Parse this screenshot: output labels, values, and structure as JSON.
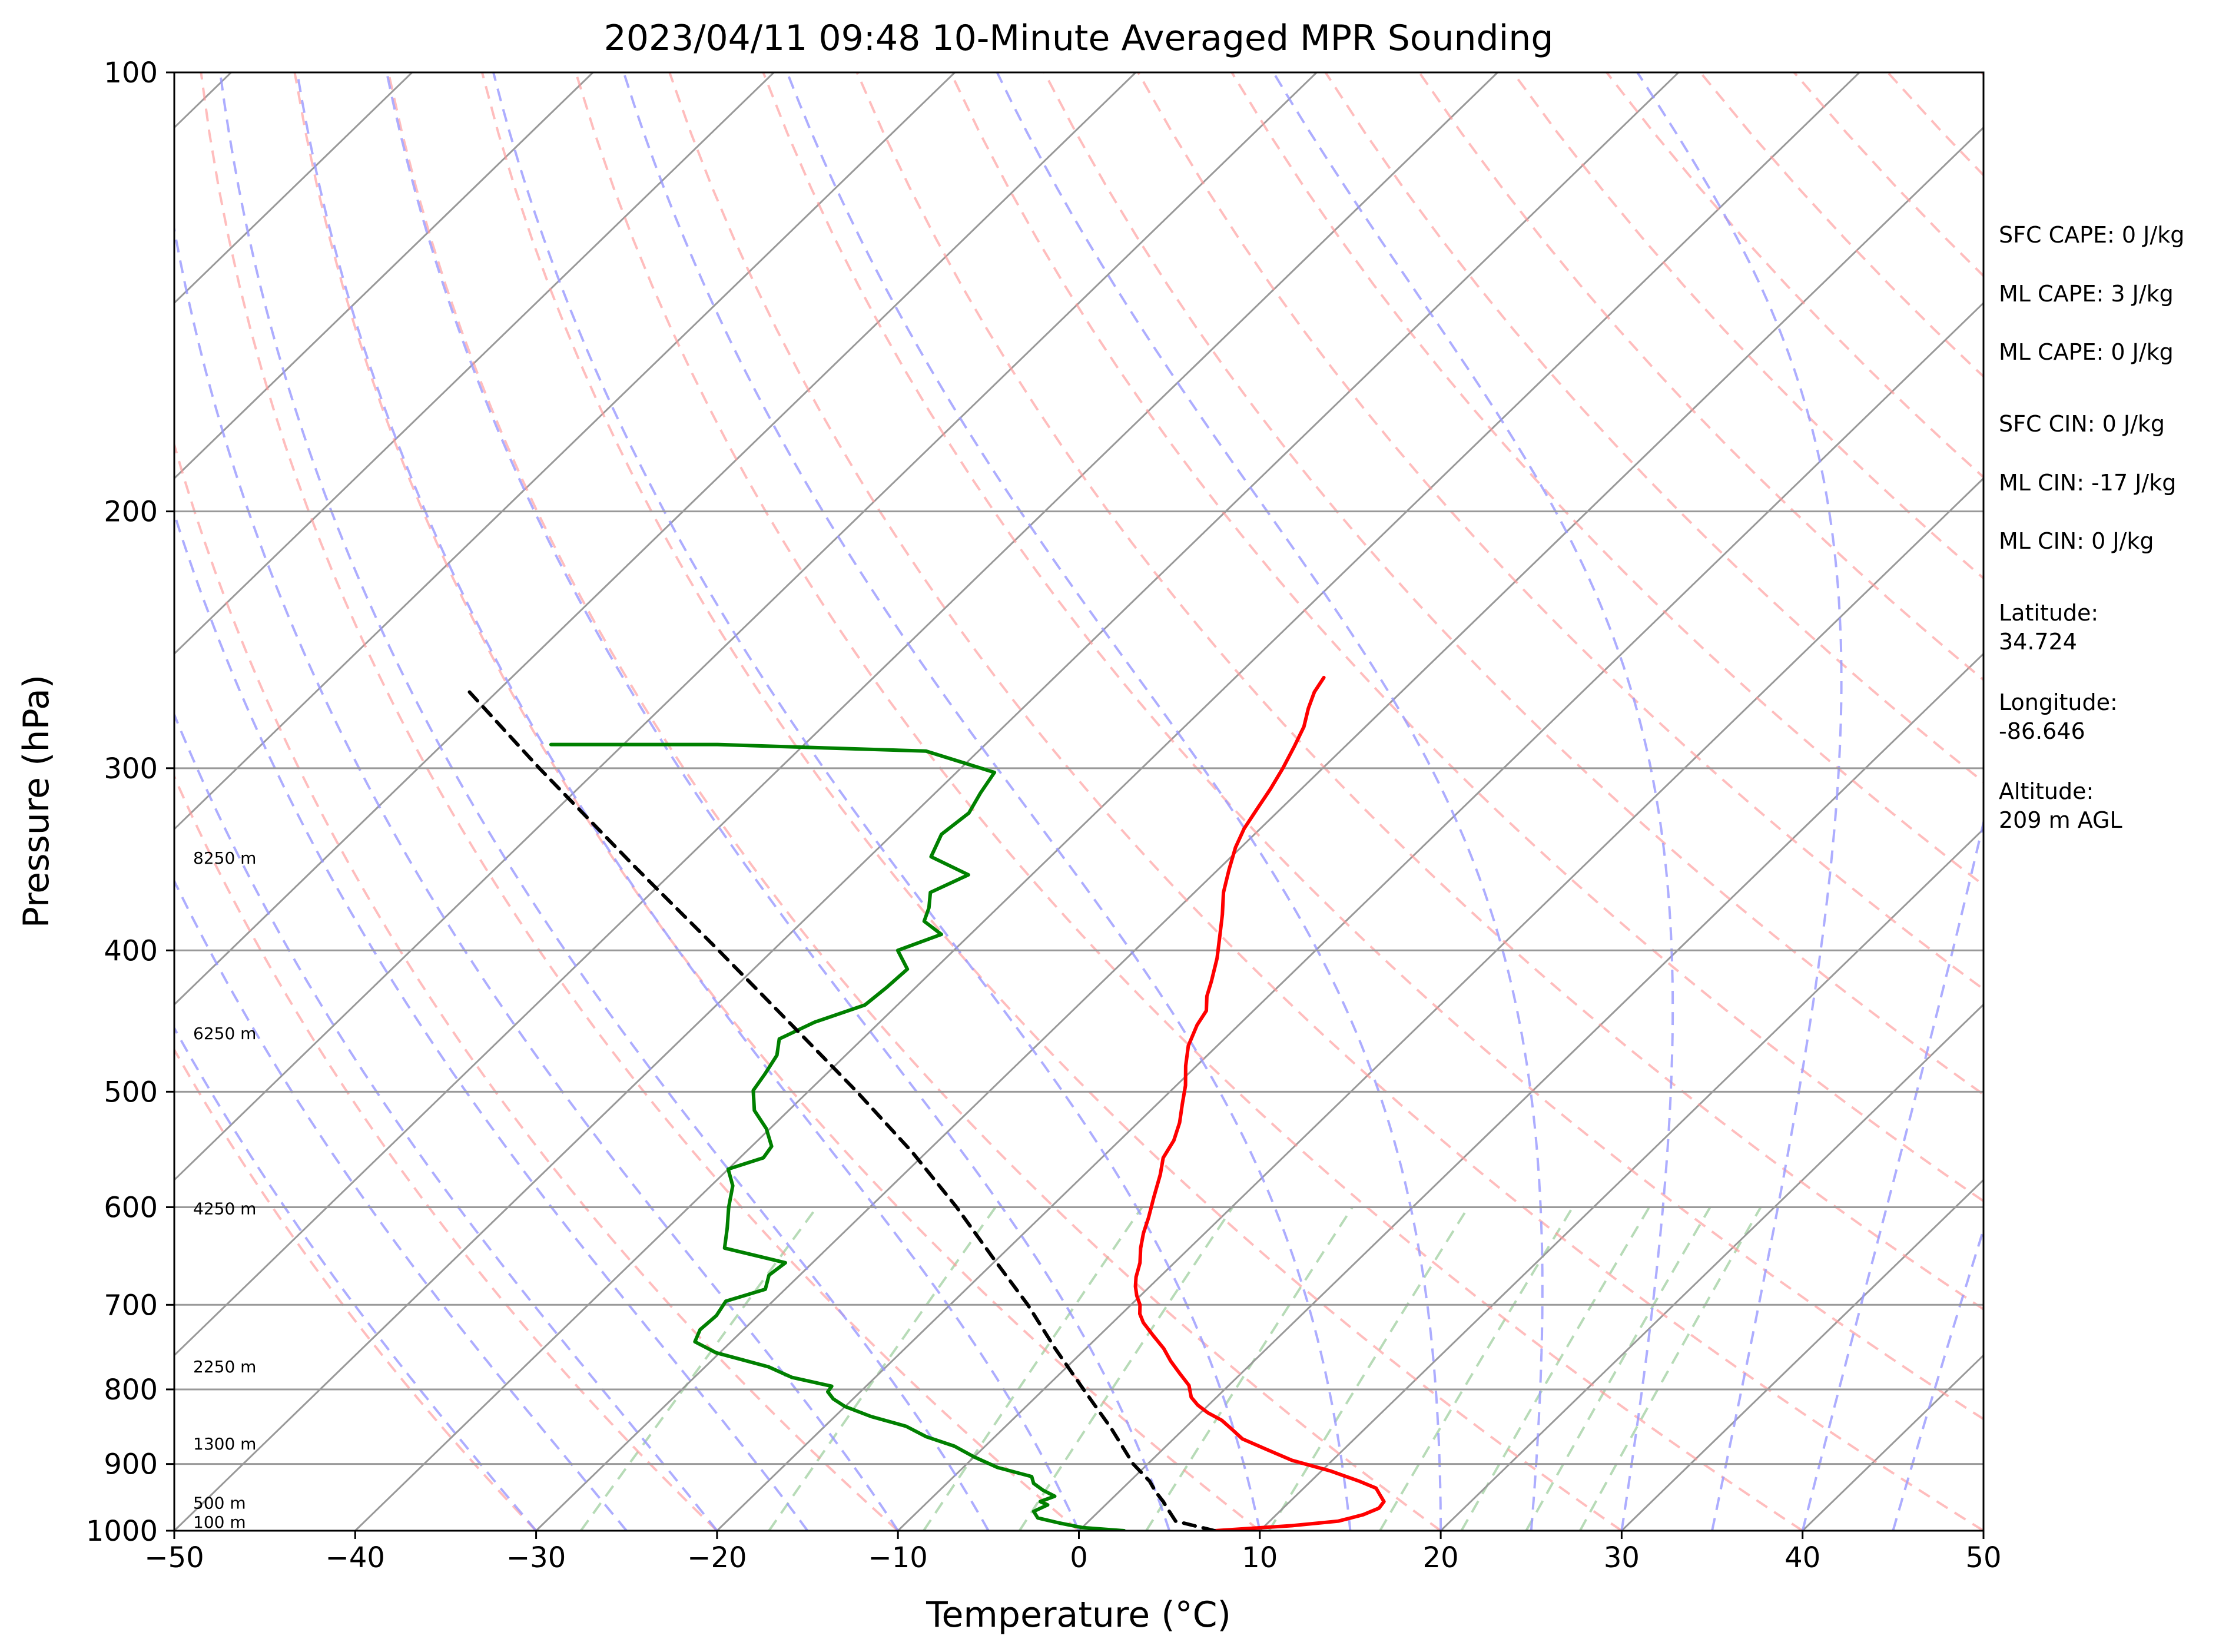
{
  "chart_data": {
    "type": "line",
    "subtype": "skew-t log-p",
    "title": "2023/04/11 09:48 10-Minute Averaged MPR Sounding",
    "xlabel": "Temperature (°C)",
    "ylabel": "Pressure (hPa)",
    "xlim": [
      -50,
      50
    ],
    "ylim": [
      1000,
      100
    ],
    "y_scale": "log",
    "x_ticks": [
      "−50",
      "−40",
      "−30",
      "−20",
      "−10",
      "0",
      "10",
      "20",
      "30",
      "40",
      "50"
    ],
    "y_ticks": [
      "100",
      "200",
      "300",
      "400",
      "500",
      "600",
      "700",
      "800",
      "900",
      "1000"
    ],
    "grid": true,
    "series": [
      {
        "role": "temperature",
        "color": "#ff0000",
        "points": [
          [
            1000,
            7.5
          ],
          [
            992,
            11.5
          ],
          [
            985,
            13.8
          ],
          [
            975,
            14.8
          ],
          [
            965,
            15.3
          ],
          [
            955,
            15.2
          ],
          [
            945,
            14.6
          ],
          [
            935,
            14.0
          ],
          [
            925,
            12.7
          ],
          [
            910,
            10.5
          ],
          [
            895,
            7.8
          ],
          [
            880,
            5.8
          ],
          [
            865,
            3.8
          ],
          [
            850,
            2.5
          ],
          [
            840,
            1.6
          ],
          [
            830,
            0.4
          ],
          [
            820,
            -0.6
          ],
          [
            810,
            -1.4
          ],
          [
            795,
            -2.2
          ],
          [
            780,
            -3.4
          ],
          [
            765,
            -4.6
          ],
          [
            750,
            -5.7
          ],
          [
            735,
            -7.0
          ],
          [
            720,
            -8.3
          ],
          [
            710,
            -9.0
          ],
          [
            700,
            -9.5
          ],
          [
            690,
            -10.2
          ],
          [
            680,
            -10.8
          ],
          [
            670,
            -11.3
          ],
          [
            655,
            -11.9
          ],
          [
            640,
            -12.7
          ],
          [
            625,
            -13.4
          ],
          [
            610,
            -14.0
          ],
          [
            590,
            -14.9
          ],
          [
            570,
            -15.8
          ],
          [
            555,
            -16.6
          ],
          [
            540,
            -17.0
          ],
          [
            525,
            -17.7
          ],
          [
            510,
            -18.6
          ],
          [
            495,
            -19.5
          ],
          [
            480,
            -20.6
          ],
          [
            465,
            -21.6
          ],
          [
            450,
            -22.3
          ],
          [
            440,
            -22.6
          ],
          [
            430,
            -23.4
          ],
          [
            420,
            -24.0
          ],
          [
            405,
            -25.0
          ],
          [
            390,
            -26.2
          ],
          [
            378,
            -27.2
          ],
          [
            365,
            -28.4
          ],
          [
            352,
            -29.4
          ],
          [
            340,
            -30.3
          ],
          [
            330,
            -30.9
          ],
          [
            320,
            -31.3
          ],
          [
            310,
            -31.7
          ],
          [
            300,
            -32.2
          ],
          [
            290,
            -32.8
          ],
          [
            281,
            -33.4
          ],
          [
            273,
            -34.2
          ],
          [
            266,
            -34.8
          ],
          [
            260,
            -35.1
          ]
        ]
      },
      {
        "role": "dewpoint",
        "color": "#008000",
        "points": [
          [
            1000,
            2.5
          ],
          [
            995,
            0.0
          ],
          [
            988,
            -1.5
          ],
          [
            980,
            -3.0
          ],
          [
            970,
            -3.6
          ],
          [
            960,
            -3.2
          ],
          [
            955,
            -3.8
          ],
          [
            947,
            -3.3
          ],
          [
            938,
            -4.3
          ],
          [
            928,
            -5.2
          ],
          [
            918,
            -5.7
          ],
          [
            905,
            -8.1
          ],
          [
            890,
            -10.0
          ],
          [
            875,
            -11.7
          ],
          [
            862,
            -13.8
          ],
          [
            848,
            -15.5
          ],
          [
            835,
            -18.0
          ],
          [
            822,
            -20.0
          ],
          [
            812,
            -21.1
          ],
          [
            803,
            -21.8
          ],
          [
            796,
            -21.9
          ],
          [
            785,
            -24.6
          ],
          [
            772,
            -26.5
          ],
          [
            755,
            -30.2
          ],
          [
            742,
            -32.0
          ],
          [
            728,
            -32.4
          ],
          [
            712,
            -32.3
          ],
          [
            696,
            -32.6
          ],
          [
            683,
            -31.1
          ],
          [
            668,
            -31.7
          ],
          [
            655,
            -31.5
          ],
          [
            640,
            -35.7
          ],
          [
            620,
            -36.7
          ],
          [
            600,
            -37.8
          ],
          [
            580,
            -38.8
          ],
          [
            565,
            -40.0
          ],
          [
            555,
            -38.7
          ],
          [
            545,
            -38.9
          ],
          [
            530,
            -40.2
          ],
          [
            515,
            -41.9
          ],
          [
            499,
            -43.1
          ],
          [
            486,
            -43.4
          ],
          [
            472,
            -43.8
          ],
          [
            460,
            -44.6
          ],
          [
            448,
            -43.6
          ],
          [
            436,
            -41.8
          ],
          [
            424,
            -41.6
          ],
          [
            412,
            -41.5
          ],
          [
            400,
            -43.1
          ],
          [
            390,
            -41.6
          ],
          [
            382,
            -43.3
          ],
          [
            374,
            -43.8
          ],
          [
            365,
            -44.6
          ],
          [
            355,
            -43.5
          ],
          [
            345,
            -46.6
          ],
          [
            333,
            -47.3
          ],
          [
            322,
            -47.0
          ],
          [
            312,
            -47.5
          ],
          [
            302,
            -47.9
          ],
          [
            292,
            -52.9
          ],
          [
            289,
            -64.8
          ],
          [
            289,
            -74.0
          ]
        ]
      },
      {
        "role": "parcel",
        "color": "#000000",
        "style": "dashed",
        "points": [
          [
            1000,
            7.5
          ],
          [
            985,
            4.8
          ],
          [
            970,
            3.9
          ],
          [
            955,
            3.0
          ],
          [
            940,
            2.0
          ],
          [
            925,
            1.1
          ],
          [
            900,
            -0.8
          ],
          [
            850,
            -4.1
          ],
          [
            800,
            -7.8
          ],
          [
            750,
            -11.7
          ],
          [
            700,
            -15.7
          ],
          [
            650,
            -20.3
          ],
          [
            600,
            -25.2
          ],
          [
            550,
            -30.8
          ],
          [
            500,
            -37.3
          ],
          [
            450,
            -44.7
          ],
          [
            400,
            -53.0
          ],
          [
            350,
            -62.5
          ],
          [
            300,
            -73.3
          ],
          [
            266,
            -81.5
          ]
        ]
      }
    ],
    "reference_lines": {
      "isotherms": {
        "color": "#999999",
        "style": "solid"
      },
      "dry_adiabats": {
        "color": "#ff9999",
        "style": "dashed"
      },
      "moist_adiabats": {
        "color": "#9999ff",
        "style": "dashed"
      },
      "mixing_ratios": {
        "color": "#99cc99",
        "style": "dashed"
      }
    },
    "height_annotations": [
      "8250 m",
      "6250 m",
      "4250 m",
      "2250 m",
      "1300 m",
      "500 m",
      "100 m"
    ],
    "info_panel": [
      "SFC CAPE: 0 J/kg",
      "ML CAPE: 3 J/kg",
      "ML CAPE: 0 J/kg",
      "SFC CIN: 0 J/kg",
      "ML CIN: -17 J/kg",
      "ML CIN: 0 J/kg",
      "Latitude:",
      "34.724",
      "Longitude:",
      "-86.646",
      "Altitude:",
      "209 m AGL"
    ]
  }
}
